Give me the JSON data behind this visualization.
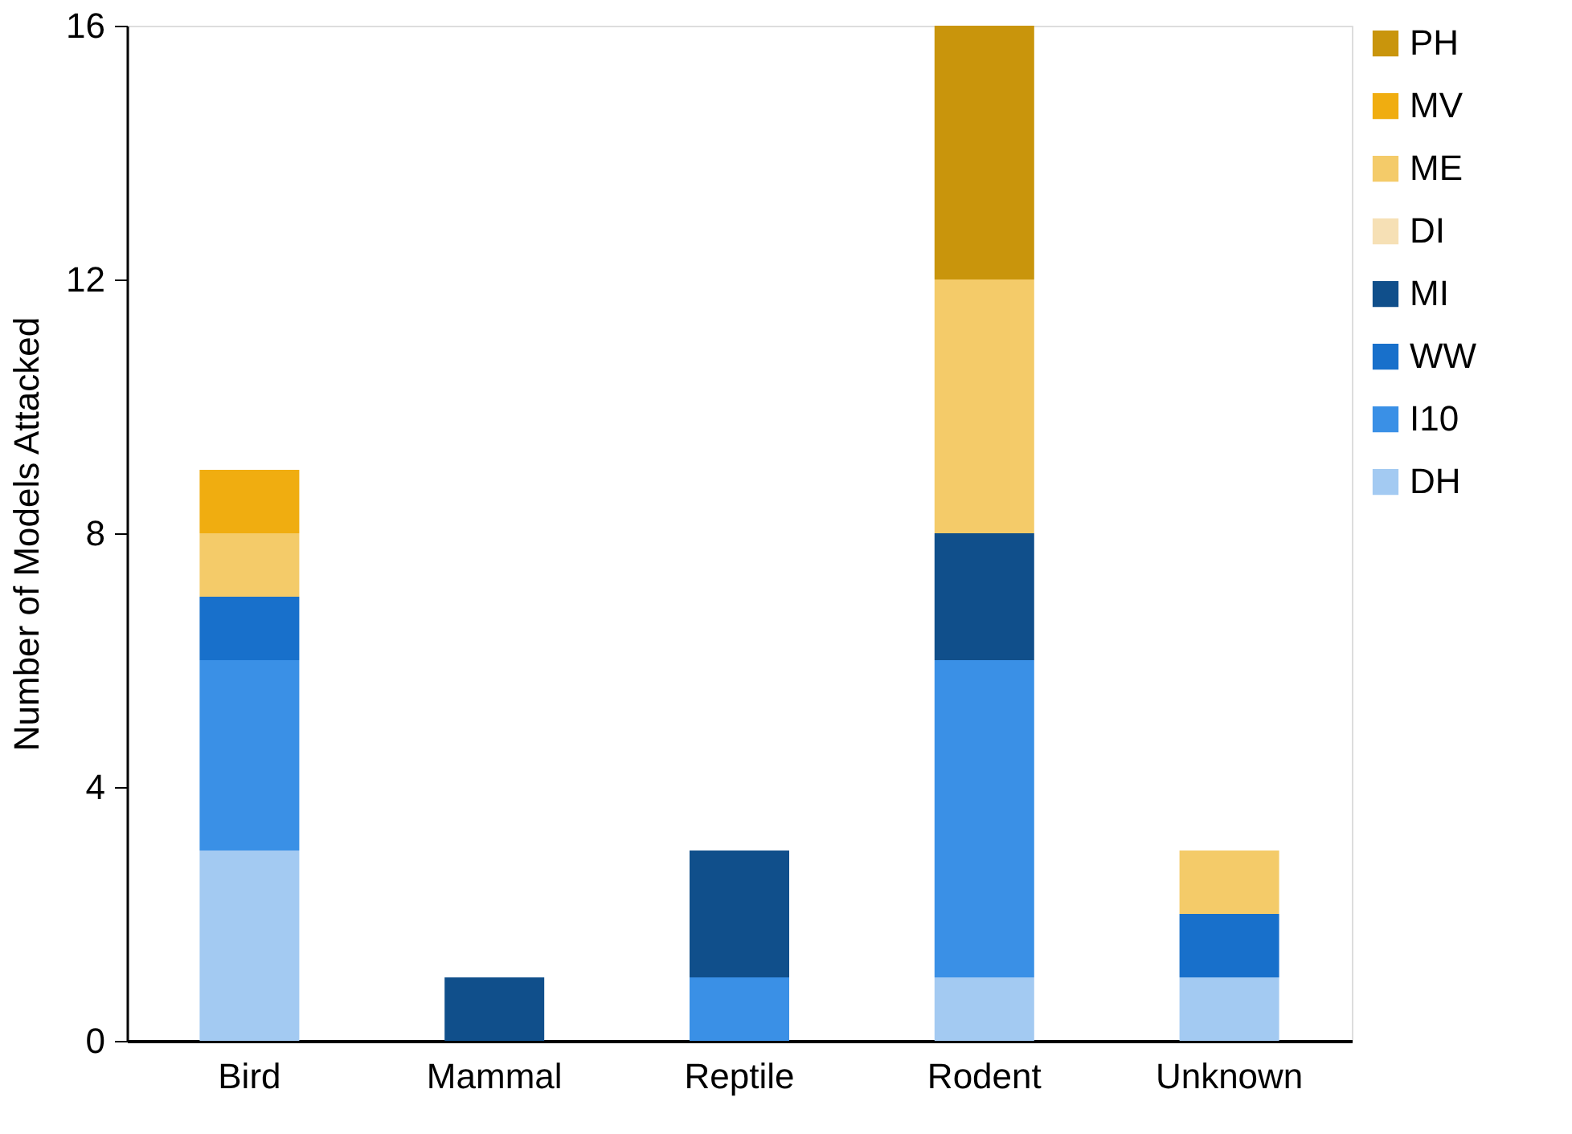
{
  "chart_data": {
    "type": "bar",
    "stacked": true,
    "ylabel": "Number of Models Attacked",
    "categories": [
      "Bird",
      "Mammal",
      "Reptile",
      "Rodent",
      "Unknown"
    ],
    "ylim": [
      0,
      16
    ],
    "yticks": [
      0,
      4,
      8,
      12,
      16
    ],
    "grid": false,
    "legend": "right",
    "series": [
      {
        "name": "DH",
        "color": "#a3caf2",
        "values": [
          3,
          0,
          0,
          1,
          1
        ]
      },
      {
        "name": "I10",
        "color": "#3a90e6",
        "values": [
          3,
          0,
          1,
          5,
          0
        ]
      },
      {
        "name": "WW",
        "color": "#1870cb",
        "values": [
          1,
          0,
          0,
          0,
          1
        ]
      },
      {
        "name": "MI",
        "color": "#104f8b",
        "values": [
          0,
          1,
          2,
          2,
          0
        ]
      },
      {
        "name": "DI",
        "color": "#f6e0b5",
        "values": [
          0,
          0,
          0,
          0,
          0
        ]
      },
      {
        "name": "ME",
        "color": "#f4cb69",
        "values": [
          1,
          0,
          0,
          4,
          1
        ]
      },
      {
        "name": "MV",
        "color": "#f0ad10",
        "values": [
          1,
          0,
          0,
          0,
          0
        ]
      },
      {
        "name": "PH",
        "color": "#c9950c",
        "values": [
          0,
          0,
          0,
          4,
          0
        ]
      }
    ]
  }
}
